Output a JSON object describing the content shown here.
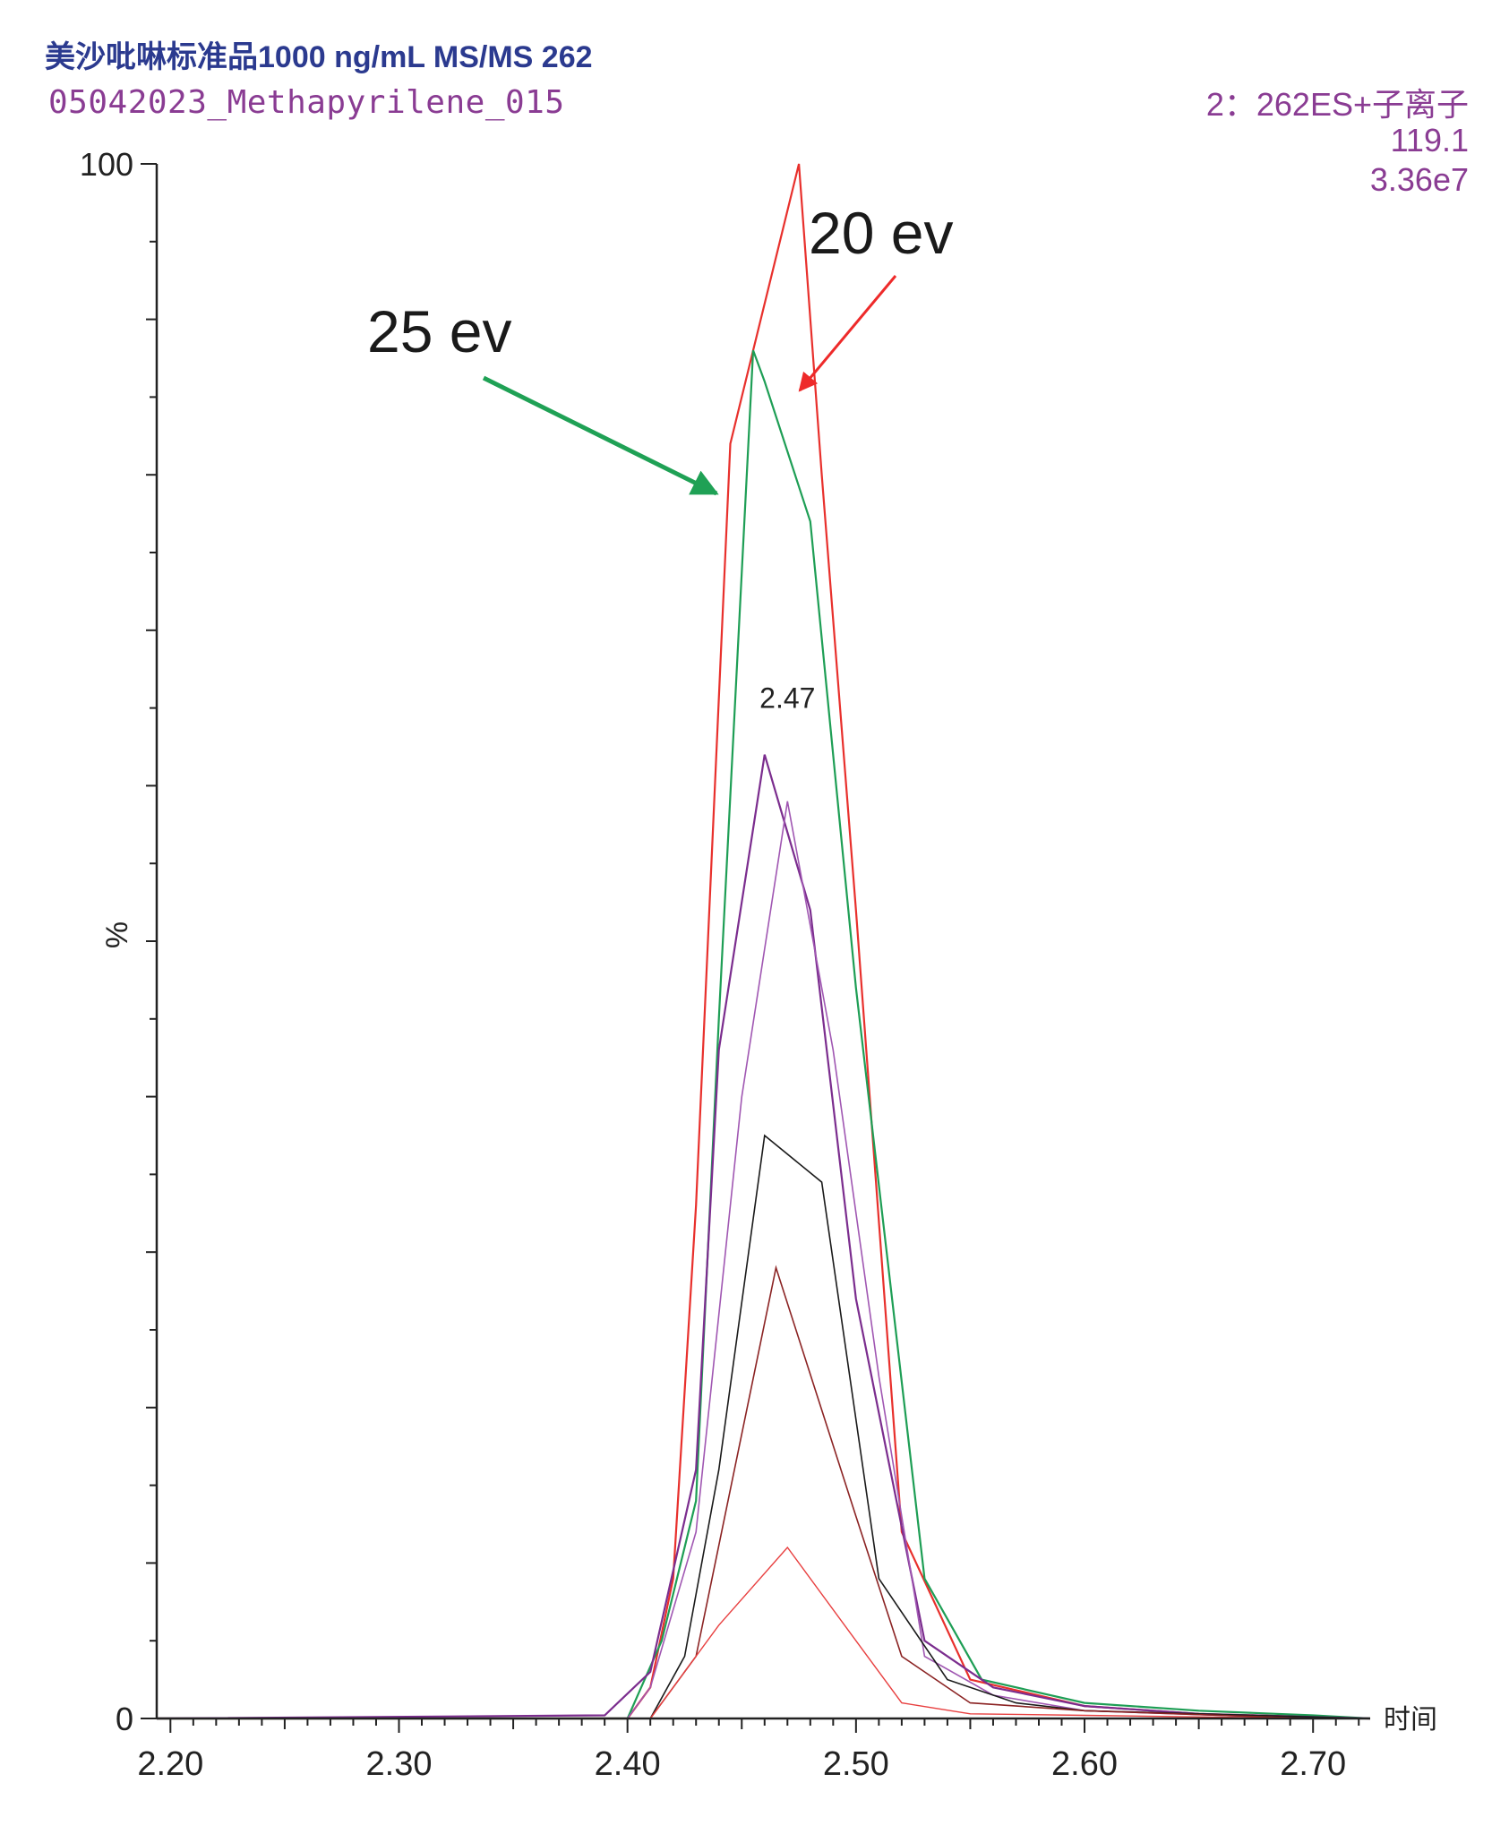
{
  "header": {
    "title": "美沙吡啉标准品1000 ng/mL MS/MS 262",
    "sample": "05042023_Methapyrilene_015",
    "channel": "2：262ES+子离子",
    "mass": "119.1",
    "intensity": "3.36e7"
  },
  "colors": {
    "title": "#2b3a8f",
    "info": "#8a3c93",
    "axis": "#222222",
    "green_arrow": "#1fa155",
    "red_arrow": "#ee2a2a"
  },
  "chart_data": {
    "type": "line",
    "xlabel": "时间",
    "ylabel": "%",
    "xlim": [
      2.194,
      2.725
    ],
    "ylim": [
      0,
      100
    ],
    "x_ticks": [
      "2.20",
      "2.30",
      "2.40",
      "2.50",
      "2.60",
      "2.70"
    ],
    "y_ticks": [
      "0",
      "100"
    ],
    "peak_label": {
      "x": 2.47,
      "y": 65,
      "text": "2.47"
    },
    "annotations": [
      {
        "text": "25 ev",
        "color": "#1fa155",
        "points_to_series": "green"
      },
      {
        "text": "20 ev",
        "color": "#ee2a2a",
        "points_to_series": "red-main"
      }
    ],
    "series": [
      {
        "id": "red-main",
        "color": "#e8302c",
        "stroke": 2.2,
        "points": [
          [
            2.194,
            0
          ],
          [
            2.4,
            0
          ],
          [
            2.41,
            2
          ],
          [
            2.42,
            9
          ],
          [
            2.43,
            33
          ],
          [
            2.445,
            82
          ],
          [
            2.455,
            88
          ],
          [
            2.475,
            100
          ],
          [
            2.485,
            80
          ],
          [
            2.5,
            52
          ],
          [
            2.52,
            12
          ],
          [
            2.55,
            2.5
          ],
          [
            2.6,
            0.8
          ],
          [
            2.65,
            0.3
          ],
          [
            2.7,
            0.1
          ],
          [
            2.725,
            0
          ]
        ]
      },
      {
        "id": "green",
        "color": "#1e9e55",
        "stroke": 2.2,
        "points": [
          [
            2.194,
            0
          ],
          [
            2.4,
            0
          ],
          [
            2.415,
            5
          ],
          [
            2.43,
            14
          ],
          [
            2.44,
            45
          ],
          [
            2.455,
            88
          ],
          [
            2.46,
            86
          ],
          [
            2.48,
            77
          ],
          [
            2.5,
            47
          ],
          [
            2.53,
            9
          ],
          [
            2.555,
            2.5
          ],
          [
            2.6,
            1
          ],
          [
            2.65,
            0.5
          ],
          [
            2.7,
            0.2
          ],
          [
            2.725,
            0
          ]
        ]
      },
      {
        "id": "purple-a",
        "color": "#7b2d8e",
        "stroke": 2.2,
        "points": [
          [
            2.194,
            0
          ],
          [
            2.39,
            0.2
          ],
          [
            2.41,
            3
          ],
          [
            2.43,
            16
          ],
          [
            2.44,
            43
          ],
          [
            2.46,
            62
          ],
          [
            2.48,
            52
          ],
          [
            2.5,
            27
          ],
          [
            2.53,
            5
          ],
          [
            2.56,
            2
          ],
          [
            2.6,
            0.8
          ],
          [
            2.65,
            0.3
          ],
          [
            2.7,
            0.1
          ],
          [
            2.725,
            0
          ]
        ]
      },
      {
        "id": "purple-b",
        "color": "#a057b2",
        "stroke": 1.6,
        "points": [
          [
            2.194,
            0
          ],
          [
            2.4,
            0
          ],
          [
            2.41,
            2
          ],
          [
            2.43,
            12
          ],
          [
            2.45,
            40
          ],
          [
            2.47,
            59
          ],
          [
            2.49,
            43
          ],
          [
            2.51,
            22
          ],
          [
            2.53,
            4
          ],
          [
            2.56,
            1.5
          ],
          [
            2.6,
            0.5
          ],
          [
            2.7,
            0
          ],
          [
            2.725,
            0
          ]
        ]
      },
      {
        "id": "black",
        "color": "#1a1a1a",
        "stroke": 1.6,
        "points": [
          [
            2.194,
            0
          ],
          [
            2.41,
            0
          ],
          [
            2.425,
            4
          ],
          [
            2.44,
            16
          ],
          [
            2.46,
            37.5
          ],
          [
            2.485,
            34.5
          ],
          [
            2.51,
            9
          ],
          [
            2.54,
            2.5
          ],
          [
            2.57,
            1
          ],
          [
            2.6,
            0.5
          ],
          [
            2.7,
            0.1
          ],
          [
            2.725,
            0
          ]
        ]
      },
      {
        "id": "maroon",
        "color": "#8b2323",
        "stroke": 1.6,
        "points": [
          [
            2.194,
            0
          ],
          [
            2.41,
            0
          ],
          [
            2.43,
            4
          ],
          [
            2.465,
            29
          ],
          [
            2.5,
            13
          ],
          [
            2.52,
            4
          ],
          [
            2.55,
            1
          ],
          [
            2.6,
            0.5
          ],
          [
            2.7,
            0
          ],
          [
            2.725,
            0
          ]
        ]
      },
      {
        "id": "red-small",
        "color": "#e84040",
        "stroke": 1.4,
        "points": [
          [
            2.194,
            0
          ],
          [
            2.41,
            0
          ],
          [
            2.44,
            6
          ],
          [
            2.47,
            11
          ],
          [
            2.5,
            5
          ],
          [
            2.52,
            1
          ],
          [
            2.55,
            0.3
          ],
          [
            2.6,
            0.2
          ],
          [
            2.7,
            0
          ],
          [
            2.725,
            0
          ]
        ]
      }
    ]
  }
}
